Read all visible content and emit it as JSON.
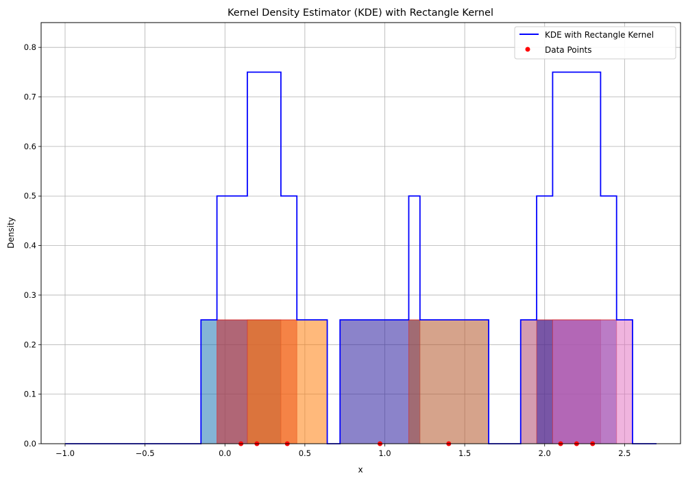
{
  "chart_data": {
    "type": "line",
    "title": "Kernel Density Estimator (KDE) with Rectangle Kernel",
    "xlabel": "x",
    "ylabel": "Density",
    "xlim": [
      -1.15,
      2.85
    ],
    "ylim": [
      0,
      0.85
    ],
    "xticks": [
      -1.0,
      -0.5,
      0.0,
      0.5,
      1.0,
      1.5,
      2.0,
      2.5
    ],
    "xtick_labels": [
      "−1.0",
      "−0.5",
      "0.0",
      "0.5",
      "1.0",
      "1.5",
      "2.0",
      "2.5"
    ],
    "yticks": [
      0.0,
      0.1,
      0.2,
      0.3,
      0.4,
      0.5,
      0.6,
      0.7,
      0.8
    ],
    "ytick_labels": [
      "0.0",
      "0.1",
      "0.2",
      "0.3",
      "0.4",
      "0.5",
      "0.6",
      "0.7",
      "0.8"
    ],
    "grid": true,
    "legend_position": "top-right",
    "series": [
      {
        "name": "KDE with Rectangle Kernel",
        "kind": "step-line",
        "color": "#0000ff",
        "x": [
          -1.0,
          -0.15,
          -0.15,
          -0.05,
          -0.05,
          0.14,
          0.14,
          0.35,
          0.35,
          0.45,
          0.45,
          0.64,
          0.64,
          0.72,
          0.72,
          1.15,
          1.15,
          1.22,
          1.22,
          1.65,
          1.65,
          1.85,
          1.85,
          1.95,
          1.95,
          2.05,
          2.05,
          2.35,
          2.35,
          2.45,
          2.45,
          2.55,
          2.55,
          2.7
        ],
        "y": [
          0,
          0,
          0.25,
          0.25,
          0.5,
          0.5,
          0.75,
          0.75,
          0.5,
          0.5,
          0.25,
          0.25,
          0,
          0,
          0.25,
          0.25,
          0.5,
          0.5,
          0.25,
          0.25,
          0,
          0,
          0.25,
          0.25,
          0.5,
          0.5,
          0.75,
          0.75,
          0.5,
          0.5,
          0.25,
          0.25,
          0,
          0
        ]
      },
      {
        "name": "Data Points",
        "kind": "scatter",
        "color": "#ff0000",
        "x": [
          0.1,
          0.2,
          0.39,
          0.97,
          1.4,
          2.1,
          2.2,
          2.3
        ],
        "y": [
          0,
          0,
          0,
          0,
          0,
          0,
          0,
          0
        ]
      }
    ],
    "kernel_rectangles": [
      {
        "x0": -0.15,
        "x1": 0.35,
        "height": 0.25,
        "color": "#1f77b4"
      },
      {
        "x0": -0.05,
        "x1": 0.45,
        "height": 0.25,
        "color": "#d62728"
      },
      {
        "x0": 0.14,
        "x1": 0.64,
        "height": 0.25,
        "color": "#ff7f0e"
      },
      {
        "x0": 0.72,
        "x1": 1.22,
        "height": 0.25,
        "color": "#2c1e9e"
      },
      {
        "x0": 1.15,
        "x1": 1.65,
        "height": 0.25,
        "color": "#b5572b"
      },
      {
        "x0": 1.85,
        "x1": 2.35,
        "height": 0.25,
        "color": "#b04a70"
      },
      {
        "x0": 1.95,
        "x1": 2.45,
        "height": 0.25,
        "color": "#2c1e9e"
      },
      {
        "x0": 2.05,
        "x1": 2.55,
        "height": 0.25,
        "color": "#e377c2"
      }
    ]
  }
}
